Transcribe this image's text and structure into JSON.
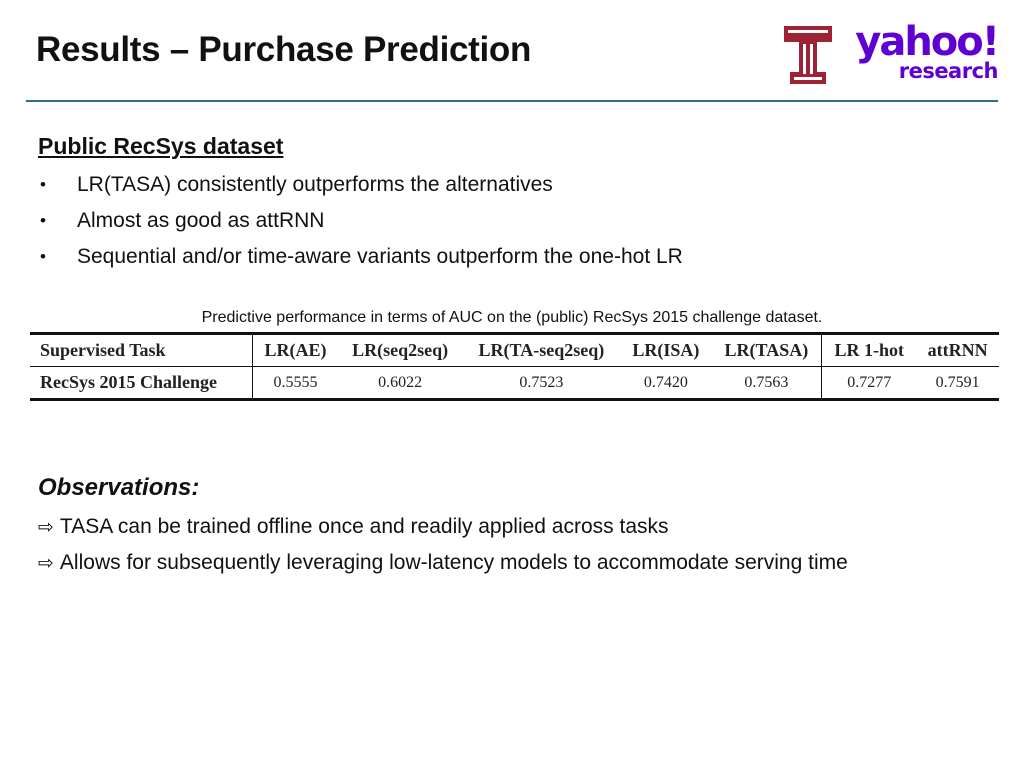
{
  "slide": {
    "title": "Results – Purchase Prediction"
  },
  "logos": {
    "temple": "temple-university-logo",
    "yahoo_word": "yahoo!",
    "yahoo_sub": "research",
    "yahoo_color": "#5f01d1",
    "temple_color": "#9d2235"
  },
  "section": {
    "heading": "Public RecSys dataset",
    "bullets": [
      "LR(TASA) consistently outperforms the alternatives",
      "Almost as good as attRNN",
      "Sequential and/or time-aware variants outperform the one-hot LR"
    ]
  },
  "table": {
    "caption": "Predictive performance in terms of AUC on the (public) RecSys 2015 challenge dataset.",
    "headers": [
      "Supervised Task",
      "LR(AE)",
      "LR(seq2seq)",
      "LR(TA-seq2seq)",
      "LR(ISA)",
      "LR(TASA)",
      "LR 1-hot",
      "attRNN"
    ],
    "rows": [
      [
        "RecSys 2015 Challenge",
        "0.5555",
        "0.6022",
        "0.7523",
        "0.7420",
        "0.7563",
        "0.7277",
        "0.7591"
      ]
    ]
  },
  "observations": {
    "heading": "Observations:",
    "arrow_icon": "right-arrow-icon",
    "items": [
      "TASA can be trained offline once and readily applied across tasks",
      "Allows for subsequently leveraging low-latency models to accommodate serving time"
    ]
  }
}
